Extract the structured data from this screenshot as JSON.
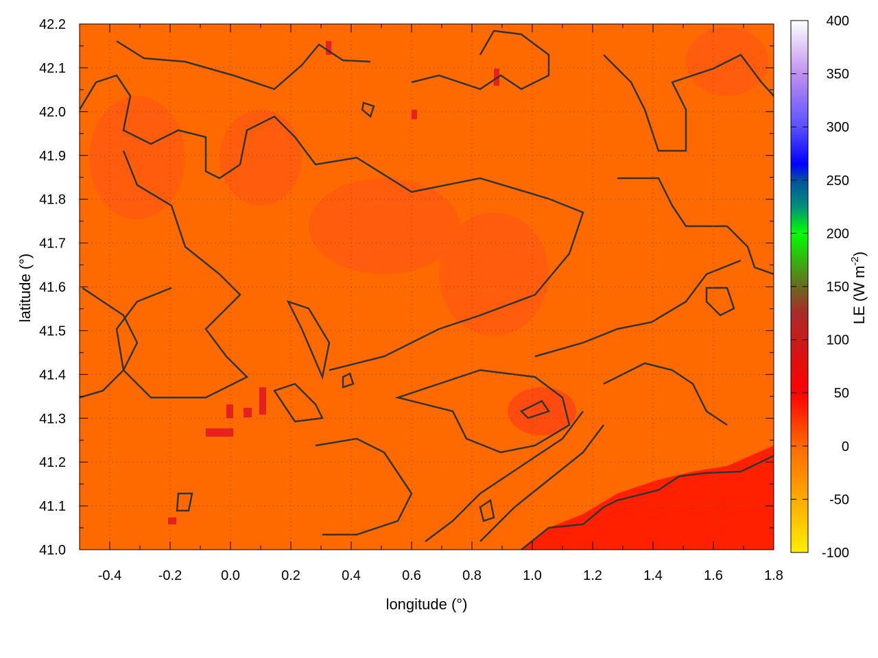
{
  "chart_data": {
    "type": "heatmap",
    "xlabel": "longitude (°)",
    "ylabel": "latitude (°)",
    "xlim": [
      -0.5,
      1.8
    ],
    "ylim": [
      41.0,
      42.2
    ],
    "xticks": [
      "-0.4",
      "-0.2",
      "0.0",
      "0.2",
      "0.4",
      "0.6",
      "0.8",
      "1.0",
      "1.2",
      "1.4",
      "1.6",
      "1.8"
    ],
    "yticks": [
      "41.0",
      "41.1",
      "41.2",
      "41.3",
      "41.4",
      "41.5",
      "41.6",
      "41.7",
      "41.8",
      "41.9",
      "42.0",
      "42.1",
      "42.2"
    ],
    "grid": true,
    "colorbar": {
      "label": "LE (W m",
      "label_sup": "-2",
      "label_end": ")",
      "range": [
        -100,
        400
      ],
      "ticks": [
        "-100",
        "-50",
        "0",
        "50",
        "100",
        "150",
        "200",
        "250",
        "300",
        "350",
        "400"
      ],
      "colors": [
        {
          "value": -100,
          "color": "#ffee00"
        },
        {
          "value": -50,
          "color": "#ffaa00"
        },
        {
          "value": 0,
          "color": "#ff6a00"
        },
        {
          "value": 50,
          "color": "#ff0000"
        },
        {
          "value": 100,
          "color": "#c81c1c"
        },
        {
          "value": 125,
          "color": "#a82a2a"
        },
        {
          "value": 150,
          "color": "#6a6a20"
        },
        {
          "value": 200,
          "color": "#00ff00"
        },
        {
          "value": 225,
          "color": "#00907a"
        },
        {
          "value": 250,
          "color": "#0050a0"
        },
        {
          "value": 265,
          "color": "#0000ff"
        },
        {
          "value": 300,
          "color": "#5a50ff"
        },
        {
          "value": 350,
          "color": "#c090f0"
        },
        {
          "value": 400,
          "color": "#ffffff"
        }
      ]
    },
    "field_color": "#ff6a00",
    "contour_color": "#333333"
  }
}
